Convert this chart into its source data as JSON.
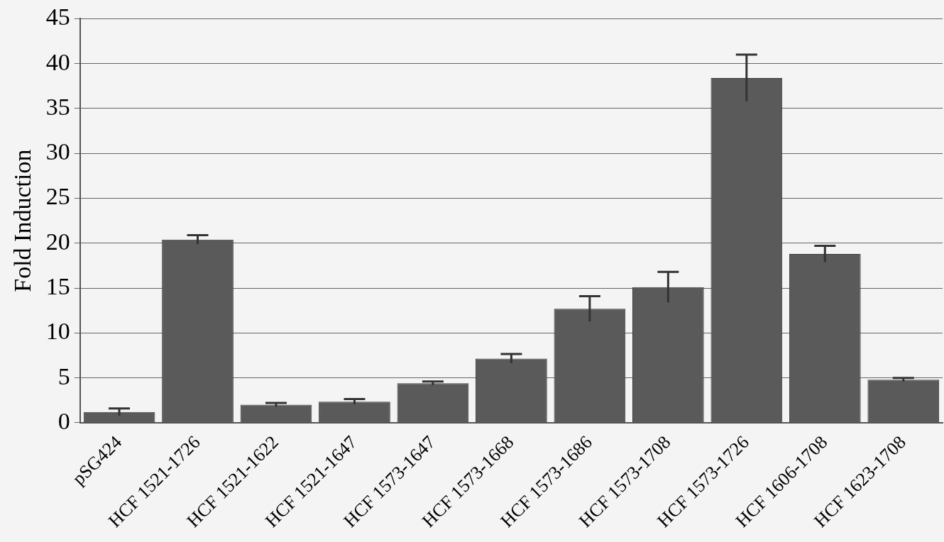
{
  "chart_data": {
    "type": "bar",
    "ylabel": "Fold Induction",
    "categories": [
      "pSG424",
      "HCF 1521-1726",
      "HCF 1521-1622",
      "HCF 1521-1647",
      "HCF 1573-1647",
      "HCF 1573-1668",
      "HCF 1573-1686",
      "HCF 1573-1708",
      "HCF 1573-1726",
      "HCF 1606-1708",
      "HCF 1623-1708"
    ],
    "values": [
      1.2,
      20.4,
      2.0,
      2.35,
      4.4,
      7.15,
      12.7,
      15.1,
      38.4,
      18.8,
      4.8
    ],
    "errors": [
      0.4,
      0.5,
      0.2,
      0.3,
      0.2,
      0.5,
      1.4,
      1.7,
      2.6,
      0.9,
      0.2
    ],
    "color": "#5a5a5a",
    "ylim": [
      0,
      45
    ],
    "yticks": [
      0,
      5,
      10,
      15,
      20,
      25,
      30,
      35,
      40,
      45
    ],
    "grid": "y"
  }
}
